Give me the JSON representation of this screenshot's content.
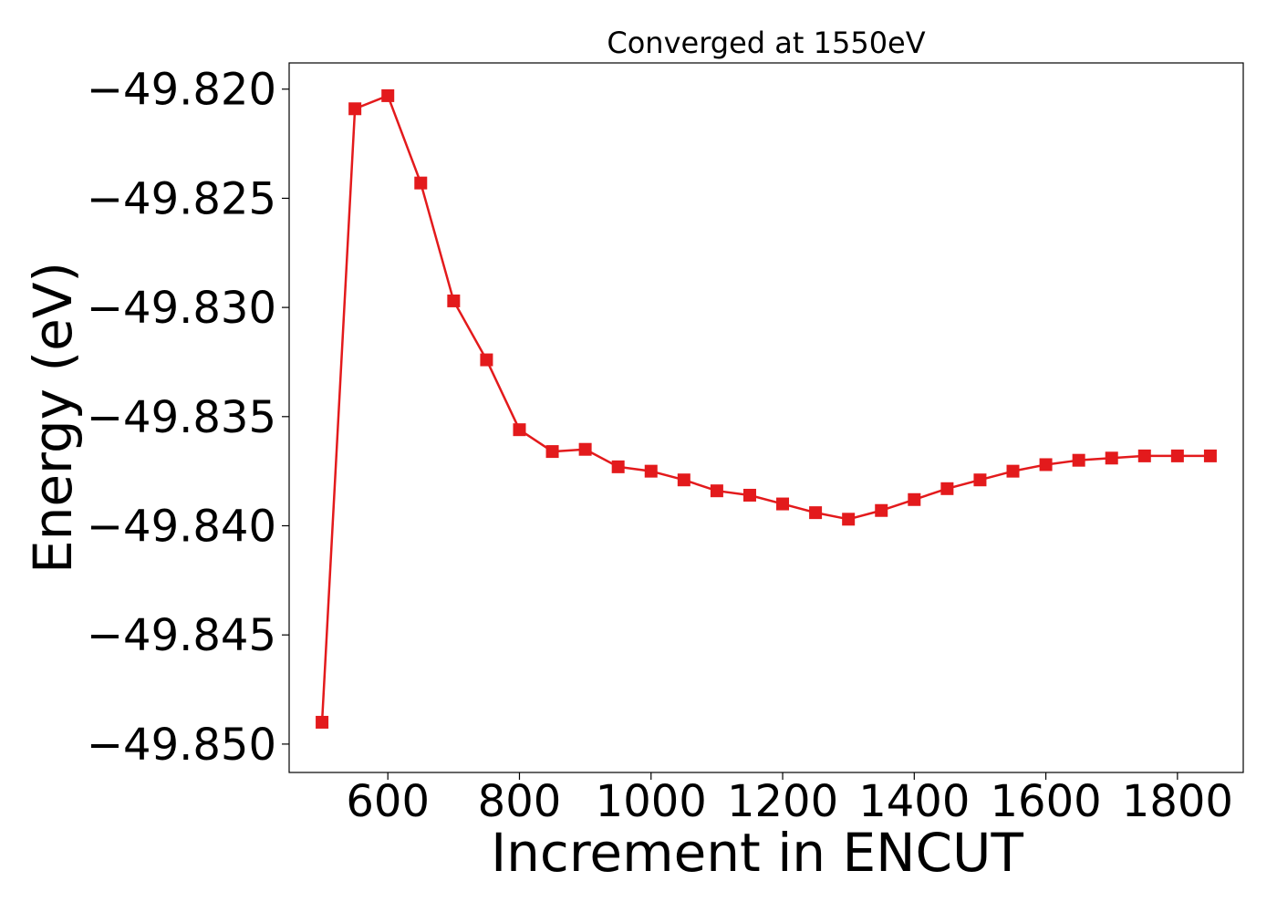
{
  "chart_data": {
    "type": "line",
    "title": "Converged at 1550eV",
    "xlabel": "Increment in ENCUT",
    "ylabel": "Energy (eV)",
    "xlim": [
      450,
      1900
    ],
    "ylim": [
      -49.8513,
      -49.8188
    ],
    "x_ticks": [
      600,
      800,
      1000,
      1200,
      1400,
      1600,
      1800
    ],
    "y_ticks": [
      -49.82,
      -49.825,
      -49.83,
      -49.835,
      -49.84,
      -49.845,
      -49.85
    ],
    "y_tick_labels": [
      "−49.820",
      "−49.825",
      "−49.830",
      "−49.835",
      "−49.840",
      "−49.845",
      "−49.850"
    ],
    "grid": false,
    "legend": "none",
    "marker": "square",
    "color": "#e31a1c",
    "series": [
      {
        "x": [
          500,
          550,
          600,
          650,
          700,
          750,
          800,
          850,
          900,
          950,
          1000,
          1050,
          1100,
          1150,
          1200,
          1250,
          1300,
          1350,
          1400,
          1450,
          1500,
          1550,
          1600,
          1650,
          1700,
          1750,
          1800,
          1850
        ],
        "y": [
          -49.849,
          -49.8209,
          -49.8203,
          -49.8243,
          -49.8297,
          -49.8324,
          -49.8356,
          -49.8366,
          -49.8365,
          -49.8373,
          -49.8375,
          -49.8379,
          -49.8384,
          -49.8386,
          -49.839,
          -49.8394,
          -49.8397,
          -49.8393,
          -49.8388,
          -49.8383,
          -49.8379,
          -49.8375,
          -49.8372,
          -49.837,
          -49.8369,
          -49.8368,
          -49.8368,
          -49.8368
        ]
      }
    ]
  }
}
